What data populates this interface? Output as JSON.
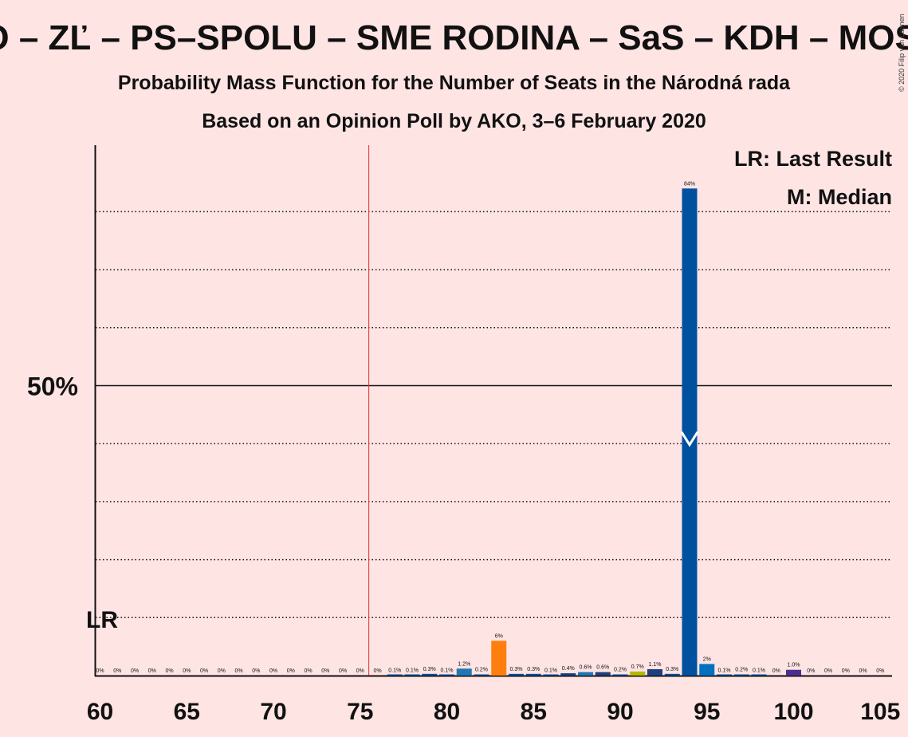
{
  "header": {
    "title": "OĽaNO – ZĽ – PS–SPOLU – SME RODINA – SaS – KDH – MOST–HÍD",
    "subtitle1": "Probability Mass Function for the Number of Seats in the Národná rada",
    "subtitle2": "Based on an Opinion Poll by AKO, 3–6 February 2020",
    "copyright": "© 2020 Filip van Laenen"
  },
  "legend": {
    "lr": "LR: Last Result",
    "m": "M: Median"
  },
  "colors": {
    "background": "#ffe4e4",
    "majority_line": "#e03030",
    "default_bar": "#0050a0"
  },
  "chart_data": {
    "type": "bar",
    "x": [
      60,
      61,
      62,
      63,
      64,
      65,
      66,
      67,
      68,
      69,
      70,
      71,
      72,
      73,
      74,
      75,
      76,
      77,
      78,
      79,
      80,
      81,
      82,
      83,
      84,
      85,
      86,
      87,
      88,
      89,
      90,
      91,
      92,
      93,
      94,
      95,
      96,
      97,
      98,
      99,
      100,
      101,
      102,
      103,
      104,
      105
    ],
    "values": [
      0,
      0,
      0,
      0,
      0,
      0,
      0,
      0,
      0,
      0,
      0,
      0,
      0,
      0,
      0,
      0,
      0,
      0.1,
      0.1,
      0.3,
      0.1,
      1.2,
      0.2,
      6,
      0.3,
      0.3,
      0.1,
      0.4,
      0.6,
      0.6,
      0.2,
      0.7,
      1.1,
      0.3,
      84,
      2,
      0.1,
      0.2,
      0.1,
      0,
      1.0,
      0,
      0,
      0,
      0,
      0
    ],
    "labels": [
      "0%",
      "0%",
      "0%",
      "0%",
      "0%",
      "0%",
      "0%",
      "0%",
      "0%",
      "0%",
      "0%",
      "0%",
      "0%",
      "0%",
      "0%",
      "0%",
      "0%",
      "0.1%",
      "0.1%",
      "0.3%",
      "0.1%",
      "1.2%",
      "0.2%",
      "6%",
      "0.3%",
      "0.3%",
      "0.1%",
      "0.4%",
      "0.6%",
      "0.6%",
      "0.2%",
      "0.7%",
      "1.1%",
      "0.3%",
      "84%",
      "2%",
      "0.1%",
      "0.2%",
      "0.1%",
      "0%",
      "1.0%",
      "0%",
      "0%",
      "0%",
      "0%",
      "0%"
    ],
    "bar_colors": {
      "81": "#1f77b4",
      "83": "#ff7f0e",
      "87": "#1f3f7f",
      "88": "#1f77b4",
      "89": "#1f3f7f",
      "91": "#b5b800",
      "92": "#1f3f7f",
      "94": "#0050a0",
      "95": "#0070c0",
      "100": "#4b2f8f"
    },
    "x_ticks": [
      "60",
      "65",
      "70",
      "75",
      "80",
      "85",
      "90",
      "95",
      "100",
      "105"
    ],
    "y_tick_label": "50%",
    "ylim": [
      0,
      100
    ],
    "majority_x": 76,
    "last_result_x": 60,
    "last_result_label": "LR",
    "median_x": 94,
    "grid": true
  }
}
